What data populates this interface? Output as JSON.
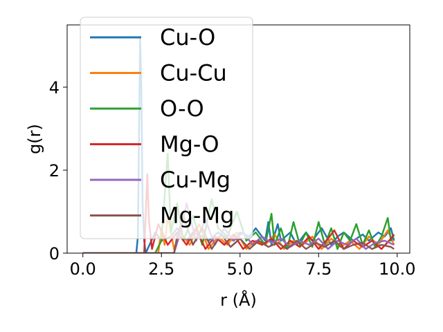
{
  "chart_data": {
    "type": "line",
    "title": "",
    "xlabel": "r (Å)",
    "ylabel": "g(r)",
    "xlim": [
      -0.5,
      10.4
    ],
    "ylim": [
      0,
      5.5
    ],
    "xticks": [
      "0.0",
      "2.5",
      "5.0",
      "7.5",
      "10.0"
    ],
    "xtick_values": [
      0,
      2.5,
      5,
      7.5,
      10
    ],
    "yticks": [
      "0",
      "2",
      "4"
    ],
    "ytick_values": [
      0,
      2,
      4
    ],
    "grid": false,
    "legend_position": "upper-left",
    "series": [
      {
        "name": "Cu-O",
        "color": "#1f77b4",
        "x": [
          0,
          1.7,
          1.75,
          1.82,
          1.86,
          1.9,
          1.95,
          2.0,
          2.3,
          2.5,
          2.8,
          3.0,
          3.3,
          3.5,
          3.8,
          4.0,
          4.3,
          4.5,
          4.8,
          5.0,
          5.3,
          5.5,
          5.8,
          5.9,
          6.0,
          6.2,
          6.3,
          6.6,
          6.8,
          7.1,
          7.3,
          7.6,
          7.9,
          8.1,
          8.3,
          8.6,
          8.9,
          9.1,
          9.4,
          9.6,
          9.8,
          9.9
        ],
        "y": [
          0,
          0,
          0.4,
          5.2,
          4.0,
          1.2,
          0.3,
          0,
          0.5,
          0.3,
          0.4,
          0.6,
          0.3,
          0.5,
          0.4,
          0.3,
          0.5,
          0.4,
          0.3,
          0.5,
          0.4,
          0.6,
          0.3,
          0.75,
          0.2,
          0.7,
          0.3,
          0.5,
          0.2,
          0.5,
          0.3,
          0.6,
          0.2,
          0.4,
          0.5,
          0.3,
          0.45,
          0.3,
          0.5,
          0.4,
          0.6,
          0.3
        ]
      },
      {
        "name": "Cu-Cu",
        "color": "#ff7f0e",
        "x": [
          0,
          2.4,
          2.5,
          2.6,
          2.7,
          2.9,
          3.1,
          3.4,
          3.7,
          4.0,
          4.3,
          4.6,
          4.9,
          5.2,
          5.5,
          5.8,
          6.1,
          6.4,
          6.7,
          7.0,
          7.3,
          7.6,
          7.9,
          8.2,
          8.5,
          8.8,
          9.1,
          9.4,
          9.7,
          9.9
        ],
        "y": [
          0,
          0,
          0.6,
          0.2,
          0.9,
          0.1,
          0.5,
          0.2,
          0.7,
          0.1,
          0.4,
          0.2,
          0.5,
          0.1,
          0.3,
          0.2,
          0.45,
          0.1,
          0.3,
          0.2,
          0.4,
          0.1,
          0.35,
          0.15,
          0.3,
          0.1,
          0.4,
          0.2,
          0.55,
          0.2
        ]
      },
      {
        "name": "O-O",
        "color": "#2ca02c",
        "x": [
          0,
          2.3,
          2.5,
          2.7,
          2.8,
          3.0,
          3.2,
          3.5,
          3.8,
          4.1,
          4.3,
          4.6,
          4.9,
          5.2,
          5.5,
          5.8,
          6.0,
          6.1,
          6.3,
          6.5,
          6.7,
          6.9,
          7.1,
          7.3,
          7.5,
          7.7,
          7.9,
          8.1,
          8.3,
          8.5,
          8.7,
          8.9,
          9.1,
          9.3,
          9.5,
          9.7,
          9.8,
          9.9
        ],
        "y": [
          0,
          0,
          0.3,
          2.4,
          0.5,
          1.2,
          0.3,
          0.9,
          0.2,
          1.3,
          0.6,
          0.4,
          1.0,
          0.3,
          0.5,
          0.2,
          0.95,
          0.2,
          0.6,
          0.1,
          0.75,
          0.2,
          0.5,
          0.15,
          0.75,
          0.2,
          0.6,
          0.1,
          0.5,
          0.3,
          0.7,
          0.2,
          0.55,
          0.15,
          0.4,
          0.85,
          0.3,
          0.45
        ]
      },
      {
        "name": "Mg-O",
        "color": "#d62728",
        "x": [
          0,
          1.95,
          2.05,
          2.1,
          2.2,
          2.4,
          2.7,
          3.0,
          3.3,
          3.6,
          3.9,
          4.2,
          4.5,
          4.8,
          5.1,
          5.4,
          5.7,
          6.0,
          6.3,
          6.6,
          6.9,
          7.2,
          7.5,
          7.8,
          8.0,
          8.3,
          8.6,
          8.9,
          9.2,
          9.5,
          9.8,
          9.9
        ],
        "y": [
          0,
          0,
          1.9,
          0.8,
          0.1,
          0.7,
          0.2,
          0.5,
          0.2,
          0.6,
          0.1,
          0.4,
          0.2,
          0.45,
          0.1,
          0.3,
          0.2,
          0.35,
          0.1,
          0.3,
          0.15,
          0.4,
          0.1,
          0.35,
          0.55,
          0.1,
          0.3,
          0.15,
          0.3,
          0.1,
          0.35,
          0.45
        ]
      },
      {
        "name": "Cu-Mg",
        "color": "#9467bd",
        "x": [
          0,
          2.9,
          3.1,
          3.3,
          3.6,
          3.9,
          4.2,
          4.5,
          4.8,
          5.1,
          5.4,
          5.7,
          6.0,
          6.3,
          6.6,
          6.9,
          7.2,
          7.5,
          7.8,
          8.1,
          8.4,
          8.7,
          9.0,
          9.3,
          9.6,
          9.9
        ],
        "y": [
          0,
          0,
          0.5,
          1.2,
          0.3,
          0.8,
          0.2,
          0.6,
          0.3,
          0.5,
          0.2,
          0.4,
          0.25,
          0.35,
          0.15,
          0.3,
          0.2,
          0.35,
          0.1,
          0.3,
          0.2,
          0.35,
          0.1,
          0.25,
          0.3,
          0.2
        ]
      },
      {
        "name": "Mg-Mg",
        "color": "#8c564b",
        "x": [
          0,
          2.9,
          3.0,
          3.2,
          3.5,
          3.8,
          4.1,
          4.4,
          4.7,
          5.0,
          5.3,
          5.6,
          5.9,
          6.2,
          6.5,
          6.8,
          7.1,
          7.4,
          7.7,
          8.0,
          8.3,
          8.6,
          8.9,
          9.2,
          9.5,
          9.8,
          9.9
        ],
        "y": [
          0,
          0,
          0.4,
          0.9,
          0.2,
          0.6,
          0.1,
          0.45,
          0.15,
          0.35,
          0.1,
          0.3,
          0.15,
          0.25,
          0.1,
          0.3,
          0.1,
          0.25,
          0.15,
          0.3,
          0.1,
          0.2,
          0.25,
          0.1,
          0.2,
          0.15,
          0.1
        ]
      }
    ]
  }
}
